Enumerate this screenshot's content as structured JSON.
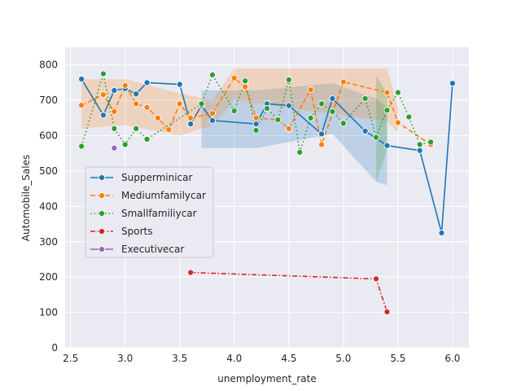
{
  "chart_data": {
    "type": "line",
    "xlabel": "unemployment_rate",
    "ylabel": "Automobile_Sales",
    "xlim": [
      2.45,
      6.15
    ],
    "ylim": [
      0,
      850
    ],
    "xticks": [
      "2.5",
      "3.0",
      "3.5",
      "4.0",
      "4.5",
      "5.0",
      "5.5",
      "6.0"
    ],
    "yticks": [
      "0",
      "100",
      "200",
      "300",
      "400",
      "500",
      "600",
      "700",
      "800"
    ],
    "grid": true,
    "legend_position": "center-left",
    "series": [
      {
        "name": "Supperminicar",
        "color": "#1f77b4",
        "dash": "solid",
        "marker": "circle",
        "points": [
          [
            2.6,
            760
          ],
          [
            2.8,
            658
          ],
          [
            2.9,
            728
          ],
          [
            3.0,
            733
          ],
          [
            3.1,
            718
          ],
          [
            3.2,
            750
          ],
          [
            3.5,
            745
          ],
          [
            3.6,
            633
          ],
          [
            3.7,
            685
          ],
          [
            3.8,
            643
          ],
          [
            4.2,
            633
          ],
          [
            4.3,
            690
          ],
          [
            4.5,
            685
          ],
          [
            4.8,
            605
          ],
          [
            4.9,
            705
          ],
          [
            5.2,
            613
          ],
          [
            5.4,
            572
          ],
          [
            5.7,
            558
          ],
          [
            5.9,
            325
          ],
          [
            6.0,
            748
          ]
        ],
        "band": [
          [
            3.7,
            565,
            728
          ],
          [
            4.2,
            565,
            728
          ],
          [
            4.9,
            605,
            748
          ],
          [
            5.3,
            470,
            705
          ],
          [
            5.4,
            460,
            680
          ]
        ]
      },
      {
        "name": "Mediumfamilycar",
        "color": "#ff7f0e",
        "dash": "dashed",
        "marker": "circle",
        "points": [
          [
            2.6,
            686
          ],
          [
            2.8,
            716
          ],
          [
            2.9,
            668
          ],
          [
            3.0,
            742
          ],
          [
            3.1,
            690
          ],
          [
            3.2,
            680
          ],
          [
            3.3,
            650
          ],
          [
            3.4,
            617
          ],
          [
            3.5,
            690
          ],
          [
            3.6,
            650
          ],
          [
            3.8,
            663
          ],
          [
            4.0,
            763
          ],
          [
            4.1,
            738
          ],
          [
            4.2,
            650
          ],
          [
            4.4,
            645
          ],
          [
            4.5,
            620
          ],
          [
            4.7,
            730
          ],
          [
            4.8,
            575
          ],
          [
            5.0,
            752
          ],
          [
            5.4,
            722
          ],
          [
            5.5,
            637
          ],
          [
            5.8,
            575
          ]
        ],
        "band": [
          [
            2.6,
            620,
            760
          ],
          [
            3.0,
            630,
            760
          ],
          [
            3.5,
            600,
            720
          ],
          [
            3.8,
            630,
            700
          ],
          [
            4.0,
            700,
            790
          ],
          [
            5.4,
            640,
            790
          ],
          [
            5.5,
            610,
            680
          ]
        ]
      },
      {
        "name": "Smallfamiliycar",
        "color": "#2ca02c",
        "dash": "dotted",
        "marker": "circle",
        "points": [
          [
            2.6,
            570
          ],
          [
            2.8,
            775
          ],
          [
            2.9,
            620
          ],
          [
            3.0,
            575
          ],
          [
            3.1,
            620
          ],
          [
            3.2,
            590
          ],
          [
            3.7,
            690
          ],
          [
            3.8,
            772
          ],
          [
            4.0,
            670
          ],
          [
            4.1,
            755
          ],
          [
            4.2,
            615
          ],
          [
            4.3,
            677
          ],
          [
            4.4,
            645
          ],
          [
            4.5,
            758
          ],
          [
            4.6,
            553
          ],
          [
            4.7,
            650
          ],
          [
            4.8,
            690
          ],
          [
            4.9,
            668
          ],
          [
            5.0,
            635
          ],
          [
            5.2,
            705
          ],
          [
            5.3,
            595
          ],
          [
            5.4,
            672
          ],
          [
            5.5,
            722
          ],
          [
            5.6,
            653
          ],
          [
            5.7,
            575
          ],
          [
            5.8,
            582
          ]
        ],
        "band": [
          [
            5.3,
            470,
            770
          ],
          [
            5.4,
            560,
            720
          ]
        ]
      },
      {
        "name": "Sports",
        "color": "#d62728",
        "dash": "dashdot",
        "marker": "circle",
        "points": [
          [
            3.6,
            213
          ],
          [
            5.3,
            195
          ],
          [
            5.4,
            102
          ]
        ],
        "band": []
      },
      {
        "name": "Executivecar",
        "color": "#9467bd",
        "dash": "solid",
        "marker": "circle",
        "points": [
          [
            2.9,
            565
          ]
        ],
        "band": []
      }
    ]
  }
}
